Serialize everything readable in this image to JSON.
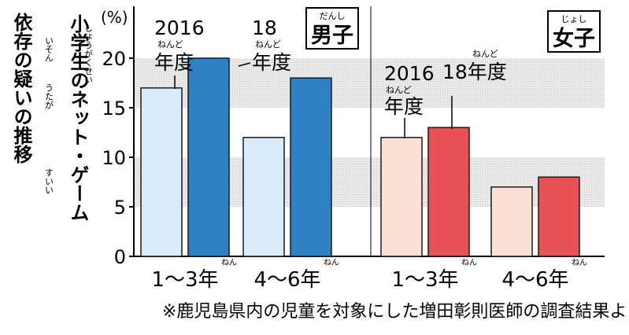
{
  "chart_data": {
    "type": "bar",
    "title": "小学生のネット・ゲーム依存の疑いの推移",
    "unit_label": "(%)",
    "ylim": [
      0,
      25
    ],
    "yticks": [
      "0",
      "5",
      "10",
      "15",
      "20"
    ],
    "panels": [
      {
        "label": "男子",
        "label_ruby": "だんし",
        "categories": [
          "1～3年",
          "4～6年"
        ],
        "series": [
          {
            "name": "2016年度",
            "values": [
              17,
              12
            ],
            "color": "#d8ecf9",
            "hatch": "#9fc6e6"
          },
          {
            "name": "18年度",
            "values": [
              20,
              18
            ],
            "color": "#2e82c4",
            "hatch": "#1d6aa7"
          }
        ]
      },
      {
        "label": "女子",
        "label_ruby": "じょし",
        "categories": [
          "1～3年",
          "4～6年"
        ],
        "series": [
          {
            "name": "2016年度",
            "values": [
              12,
              7
            ],
            "color": "#fbe0d6",
            "hatch": "#f2b9a8"
          },
          {
            "name": "18年度",
            "values": [
              13,
              8
            ],
            "color": "#e95157",
            "hatch": "#cf3a41"
          }
        ]
      }
    ],
    "band_color": "#e6e6e6",
    "grid": "shaded bands 5–10 and 15–20"
  },
  "ruby": {
    "nendo": "ねんど",
    "nen": "ねん",
    "shougakusei": "しょうがくせい",
    "izon": "いそん",
    "utagai": "うたが",
    "suii": "すいい"
  },
  "footnote": "※鹿児島県内の児童を対象にした増田彰則医師の調査結果より"
}
